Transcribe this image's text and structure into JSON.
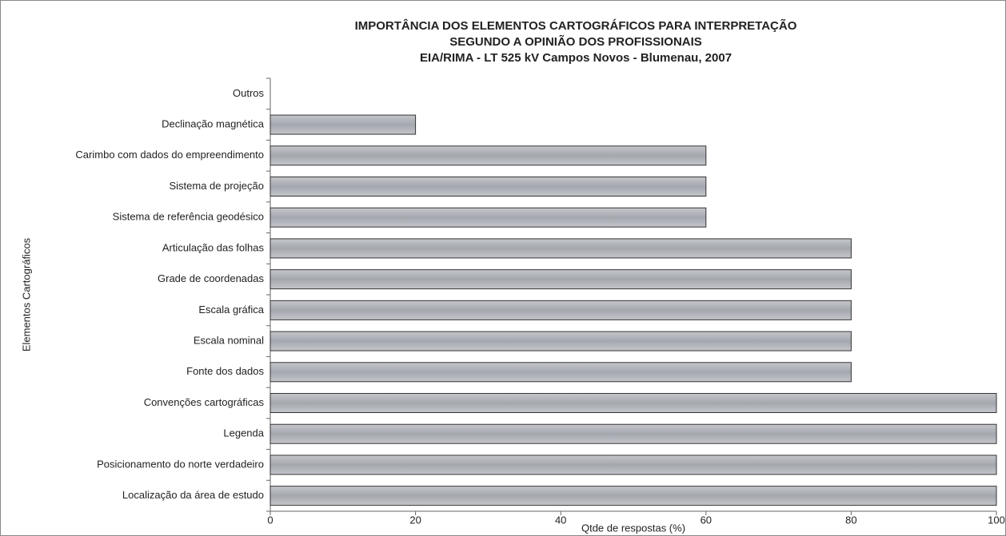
{
  "chart_data": {
    "type": "bar",
    "orientation": "horizontal",
    "title": [
      "IMPORTÂNCIA DOS ELEMENTOS CARTOGRÁFICOS PARA INTERPRETAÇÃO",
      "SEGUNDO A OPINIÃO DOS PROFISSIONAIS",
      "EIA/RIMA - LT 525 kV Campos Novos - Blumenau, 2007"
    ],
    "xlabel": "Qtde de respostas (%)",
    "ylabel": "Elementos Cartográficos",
    "categories": [
      "Outros",
      "Declinação magnética",
      "Carimbo com dados do empreendimento",
      "Sistema de projeção",
      "Sistema de referência geodésico",
      "Articulação das folhas",
      "Grade de coordenadas",
      "Escala gráfica",
      "Escala nominal",
      "Fonte dos dados",
      "Convenções cartográficas",
      "Legenda",
      "Posicionamento do norte verdadeiro",
      "Localização da área de estudo"
    ],
    "values": [
      0,
      20,
      60,
      60,
      60,
      80,
      80,
      80,
      80,
      80,
      100,
      100,
      100,
      100
    ],
    "color": "#b4b6bc",
    "xlim": [
      0,
      100
    ],
    "xticks": [
      0,
      20,
      40,
      60,
      80,
      100
    ],
    "grid": false
  }
}
